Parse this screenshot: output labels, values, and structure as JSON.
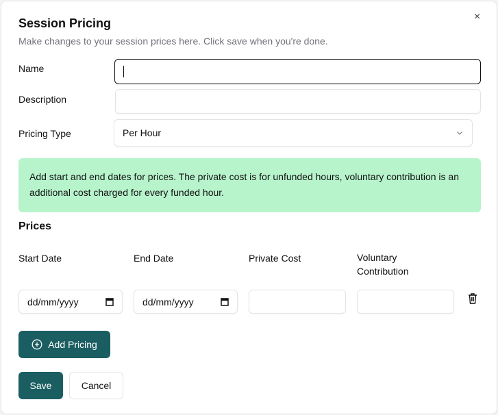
{
  "dialog": {
    "title": "Session Pricing",
    "subtitle": "Make changes to your session prices here. Click save when you're done.",
    "close": "×"
  },
  "form": {
    "name_label": "Name",
    "name_value": "",
    "description_label": "Description",
    "description_value": "",
    "pricing_type_label": "Pricing Type",
    "pricing_type_value": "Per Hour"
  },
  "info": "Add start and end dates for prices. The private cost is for unfunded hours, voluntary contribution is an additional cost charged for every funded hour.",
  "prices": {
    "heading": "Prices",
    "columns": [
      "Start Date",
      "End Date",
      "Private Cost",
      "Voluntary Contribution"
    ],
    "rows": [
      {
        "start": "dd/mm/yyyy",
        "end": "dd/mm/yyyy",
        "private_cost": "",
        "voluntary": ""
      }
    ]
  },
  "buttons": {
    "add_pricing": "Add Pricing",
    "save": "Save",
    "cancel": "Cancel"
  },
  "colors": {
    "primary": "#1b5e62",
    "info_bg": "#b7f4cc"
  }
}
